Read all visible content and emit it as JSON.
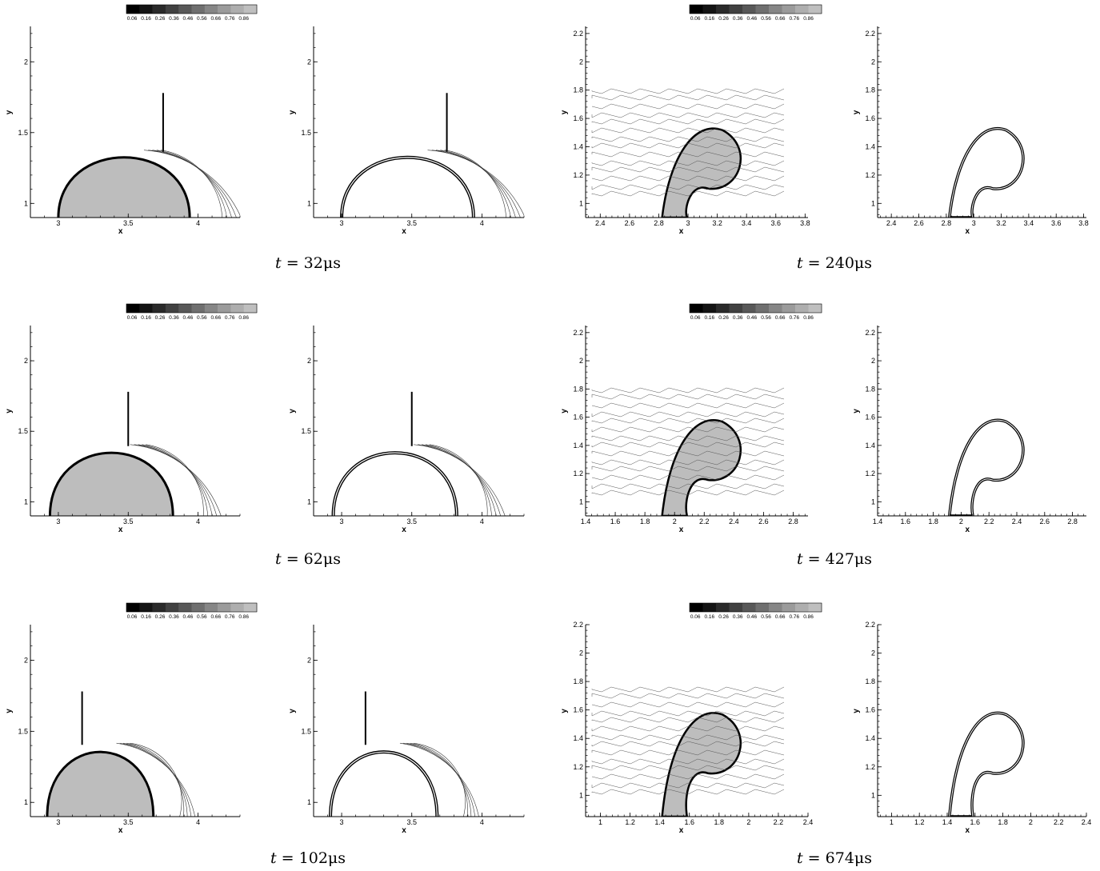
{
  "colorbar": {
    "labels": [
      "0.06",
      "0.16",
      "0.26",
      "0.36",
      "0.46",
      "0.56",
      "0.66",
      "0.76",
      "0.86"
    ],
    "colors": [
      "#000000",
      "#141414",
      "#2a2a2a",
      "#414141",
      "#585858",
      "#6f6f6f",
      "#868686",
      "#9b9b9b",
      "#aeaeae",
      "#bfbfbf"
    ]
  },
  "colors": {
    "fill_gray": "#bdbdbd",
    "contour": "#333333",
    "axis": "#000000"
  },
  "rows": [
    {
      "left": {
        "caption": "t = 32μs",
        "t_symbol": "t",
        "equals": "=",
        "value": "32",
        "unit": "μs"
      },
      "right": {
        "caption": "t = 240μs",
        "t_symbol": "t",
        "equals": "=",
        "value": "240",
        "unit": "μs"
      }
    },
    {
      "left": {
        "caption": "t = 62μs",
        "t_symbol": "t",
        "equals": "=",
        "value": "62",
        "unit": "μs"
      },
      "right": {
        "caption": "t = 427μs",
        "t_symbol": "t",
        "equals": "=",
        "value": "427",
        "unit": "μs"
      }
    },
    {
      "left": {
        "caption": "t = 102μs",
        "t_symbol": "t",
        "equals": "=",
        "value": "102",
        "unit": "μs"
      },
      "right": {
        "caption": "t = 674μs",
        "t_symbol": "t",
        "equals": "=",
        "value": "674",
        "unit": "μs"
      }
    }
  ],
  "chart_data": [
    {
      "type": "heatmap",
      "time": "t = 32μs",
      "panel": "density contour (filled)",
      "xlabel": "x",
      "ylabel": "y",
      "xlim": [
        2.8,
        4.3
      ],
      "ylim": [
        0.9,
        2.25
      ],
      "xticks": [
        3,
        3.5,
        4
      ],
      "xtick_labels": [
        "3",
        "3.5",
        "4"
      ],
      "yticks": [
        1,
        1.5,
        2
      ],
      "ytick_labels": [
        "1",
        "1.5",
        "2"
      ],
      "colorbar": true
    },
    {
      "type": "heatmap",
      "time": "t = 32μs",
      "panel": "schlieren",
      "xlabel": "x",
      "ylabel": "y",
      "xlim": [
        2.8,
        4.3
      ],
      "ylim": [
        0.9,
        2.25
      ],
      "xticks": [
        3,
        3.5,
        4
      ],
      "xtick_labels": [
        "3",
        "3.5",
        "4"
      ],
      "yticks": [
        1,
        1.5,
        2
      ],
      "ytick_labels": [
        "1",
        "1.5",
        "2"
      ],
      "colorbar": false
    },
    {
      "type": "heatmap",
      "time": "t = 240μs",
      "panel": "density contour (filled)",
      "xlabel": "x",
      "ylabel": "y",
      "xlim": [
        2.3,
        3.82
      ],
      "ylim": [
        0.9,
        2.25
      ],
      "xticks": [
        2.4,
        2.6,
        2.8,
        3,
        3.2,
        3.4,
        3.6,
        3.8
      ],
      "xtick_labels": [
        "2.4",
        "2.6",
        "2.8",
        "3",
        "3.2",
        "3.4",
        "3.6",
        "3.8"
      ],
      "yticks": [
        1,
        1.2,
        1.4,
        1.6,
        1.8,
        2,
        2.2
      ],
      "ytick_labels": [
        "1",
        "1.2",
        "1.4",
        "1.6",
        "1.8",
        "2",
        "2.2"
      ],
      "colorbar": true
    },
    {
      "type": "heatmap",
      "time": "t = 240μs",
      "panel": "schlieren",
      "xlabel": "x",
      "ylabel": "y",
      "xlim": [
        2.3,
        3.82
      ],
      "ylim": [
        0.9,
        2.25
      ],
      "xticks": [
        2.4,
        2.6,
        2.8,
        3,
        3.2,
        3.4,
        3.6,
        3.8
      ],
      "xtick_labels": [
        "2.4",
        "2.6",
        "2.8",
        "3",
        "3.2",
        "3.4",
        "3.6",
        "3.8"
      ],
      "yticks": [
        1,
        1.2,
        1.4,
        1.6,
        1.8,
        2,
        2.2
      ],
      "ytick_labels": [
        "1",
        "1.2",
        "1.4",
        "1.6",
        "1.8",
        "2",
        "2.2"
      ],
      "colorbar": false
    },
    {
      "type": "heatmap",
      "time": "t = 62μs",
      "panel": "density contour (filled)",
      "xlabel": "x",
      "ylabel": "y",
      "xlim": [
        2.8,
        4.3
      ],
      "ylim": [
        0.9,
        2.25
      ],
      "xticks": [
        3,
        3.5,
        4
      ],
      "xtick_labels": [
        "3",
        "3.5",
        "4"
      ],
      "yticks": [
        1,
        1.5,
        2
      ],
      "ytick_labels": [
        "1",
        "1.5",
        "2"
      ],
      "colorbar": true
    },
    {
      "type": "heatmap",
      "time": "t = 62μs",
      "panel": "schlieren",
      "xlabel": "x",
      "ylabel": "y",
      "xlim": [
        2.8,
        4.3
      ],
      "ylim": [
        0.9,
        2.25
      ],
      "xticks": [
        3,
        3.5,
        4
      ],
      "xtick_labels": [
        "3",
        "3.5",
        "4"
      ],
      "yticks": [
        1,
        1.5,
        2
      ],
      "ytick_labels": [
        "1",
        "1.5",
        "2"
      ],
      "colorbar": false
    },
    {
      "type": "heatmap",
      "time": "t = 427μs",
      "panel": "density contour (filled)",
      "xlabel": "x",
      "ylabel": "y",
      "xlim": [
        1.4,
        2.9
      ],
      "ylim": [
        0.9,
        2.25
      ],
      "xticks": [
        1.4,
        1.6,
        1.8,
        2,
        2.2,
        2.4,
        2.6,
        2.8
      ],
      "xtick_labels": [
        "1.4",
        "1.6",
        "1.8",
        "2",
        "2.2",
        "2.4",
        "2.6",
        "2.8"
      ],
      "yticks": [
        1,
        1.2,
        1.4,
        1.6,
        1.8,
        2,
        2.2
      ],
      "ytick_labels": [
        "1",
        "1.2",
        "1.4",
        "1.6",
        "1.8",
        "2",
        "2.2"
      ],
      "colorbar": true
    },
    {
      "type": "heatmap",
      "time": "t = 427μs",
      "panel": "schlieren",
      "xlabel": "x",
      "ylabel": "y",
      "xlim": [
        1.4,
        2.9
      ],
      "ylim": [
        0.9,
        2.25
      ],
      "xticks": [
        1.4,
        1.6,
        1.8,
        2,
        2.2,
        2.4,
        2.6,
        2.8
      ],
      "xtick_labels": [
        "1.4",
        "1.6",
        "1.8",
        "2",
        "2.2",
        "2.4",
        "2.6",
        "2.8"
      ],
      "yticks": [
        1,
        1.2,
        1.4,
        1.6,
        1.8,
        2,
        2.2
      ],
      "ytick_labels": [
        "1",
        "1.2",
        "1.4",
        "1.6",
        "1.8",
        "2",
        "2.2"
      ],
      "colorbar": false
    },
    {
      "type": "heatmap",
      "time": "t = 102μs",
      "panel": "density contour (filled)",
      "xlabel": "x",
      "ylabel": "y",
      "xlim": [
        2.8,
        4.3
      ],
      "ylim": [
        0.9,
        2.25
      ],
      "xticks": [
        3,
        3.5,
        4
      ],
      "xtick_labels": [
        "3",
        "3.5",
        "4"
      ],
      "yticks": [
        1,
        1.5,
        2
      ],
      "ytick_labels": [
        "1",
        "1.5",
        "2"
      ],
      "colorbar": true
    },
    {
      "type": "heatmap",
      "time": "t = 102μs",
      "panel": "schlieren",
      "xlabel": "x",
      "ylabel": "y",
      "xlim": [
        2.8,
        4.3
      ],
      "ylim": [
        0.9,
        2.25
      ],
      "xticks": [
        3,
        3.5,
        4
      ],
      "xtick_labels": [
        "3",
        "3.5",
        "4"
      ],
      "yticks": [
        1,
        1.5,
        2
      ],
      "ytick_labels": [
        "1",
        "1.5",
        "2"
      ],
      "colorbar": false
    },
    {
      "type": "heatmap",
      "time": "t = 674μs",
      "panel": "density contour (filled)",
      "xlabel": "x",
      "ylabel": "y",
      "xlim": [
        0.9,
        2.4
      ],
      "ylim": [
        0.85,
        2.2
      ],
      "xticks": [
        1,
        1.2,
        1.4,
        1.6,
        1.8,
        2,
        2.2,
        2.4
      ],
      "xtick_labels": [
        "1",
        "1.2",
        "1.4",
        "1.6",
        "1.8",
        "2",
        "2.2",
        "2.4"
      ],
      "yticks": [
        1,
        1.2,
        1.4,
        1.6,
        1.8,
        2,
        2.2
      ],
      "ytick_labels": [
        "1",
        "1.2",
        "1.4",
        "1.6",
        "1.8",
        "2",
        "2.2"
      ],
      "colorbar": true
    },
    {
      "type": "heatmap",
      "time": "t = 674μs",
      "panel": "schlieren",
      "xlabel": "x",
      "ylabel": "y",
      "xlim": [
        0.9,
        2.4
      ],
      "ylim": [
        0.85,
        2.2
      ],
      "xticks": [
        1,
        1.2,
        1.4,
        1.6,
        1.8,
        2,
        2.2,
        2.4
      ],
      "xtick_labels": [
        "1",
        "1.2",
        "1.4",
        "1.6",
        "1.8",
        "2",
        "2.2",
        "2.4"
      ],
      "yticks": [
        1,
        1.2,
        1.4,
        1.6,
        1.8,
        2,
        2.2
      ],
      "ytick_labels": [
        "1",
        "1.2",
        "1.4",
        "1.6",
        "1.8",
        "2",
        "2.2"
      ],
      "colorbar": false
    }
  ]
}
